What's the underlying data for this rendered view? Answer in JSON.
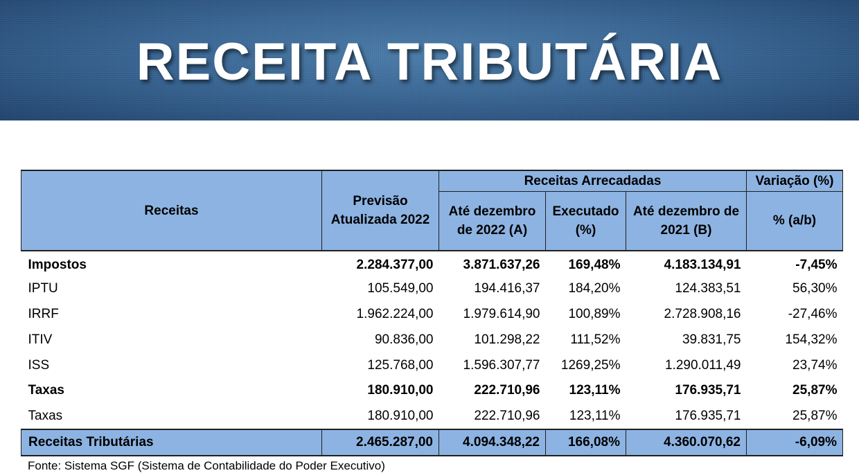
{
  "banner": {
    "title": "RECEITA TRIBUTÁRIA"
  },
  "table": {
    "header": {
      "receitas": "Receitas",
      "previsao": "Previsão Atualizada 2022",
      "arrecadadas": "Receitas Arrecadadas",
      "variacao": "Variação (%)",
      "ate_2022": "Até dezembro de 2022 (A)",
      "executado": "Executado (%)",
      "ate_2021": "Até dezembro de 2021 (B)",
      "pct_ab": "% (a/b)"
    },
    "rows": [
      {
        "label": "Impostos",
        "previsao": "2.284.377,00",
        "ate_2022": "3.871.637,26",
        "executado": "169,48%",
        "ate_2021": "4.183.134,91",
        "variacao": "-7,45%",
        "bold": true
      },
      {
        "label": "IPTU",
        "previsao": "105.549,00",
        "ate_2022": "194.416,37",
        "executado": "184,20%",
        "ate_2021": "124.383,51",
        "variacao": "56,30%",
        "bold": false
      },
      {
        "label": "IRRF",
        "previsao": "1.962.224,00",
        "ate_2022": "1.979.614,90",
        "executado": "100,89%",
        "ate_2021": "2.728.908,16",
        "variacao": "-27,46%",
        "bold": false
      },
      {
        "label": "ITIV",
        "previsao": "90.836,00",
        "ate_2022": "101.298,22",
        "executado": "111,52%",
        "ate_2021": "39.831,75",
        "variacao": "154,32%",
        "bold": false
      },
      {
        "label": "ISS",
        "previsao": "125.768,00",
        "ate_2022": "1.596.307,77",
        "executado": "1269,25%",
        "ate_2021": "1.290.011,49",
        "variacao": "23,74%",
        "bold": false
      },
      {
        "label": "Taxas",
        "previsao": "180.910,00",
        "ate_2022": "222.710,96",
        "executado": "123,11%",
        "ate_2021": "176.935,71",
        "variacao": "25,87%",
        "bold": true
      },
      {
        "label": "Taxas",
        "previsao": "180.910,00",
        "ate_2022": "222.710,96",
        "executado": "123,11%",
        "ate_2021": "176.935,71",
        "variacao": "25,87%",
        "bold": false
      }
    ],
    "total": {
      "label": "Receitas Tributárias",
      "previsao": "2.465.287,00",
      "ate_2022": "4.094.348,22",
      "executado": "166,08%",
      "ate_2021": "4.360.070,62",
      "variacao": "-6,09%"
    }
  },
  "source": "Fonte: Sistema SGF (Sistema de Contabilidade do Poder Executivo)"
}
